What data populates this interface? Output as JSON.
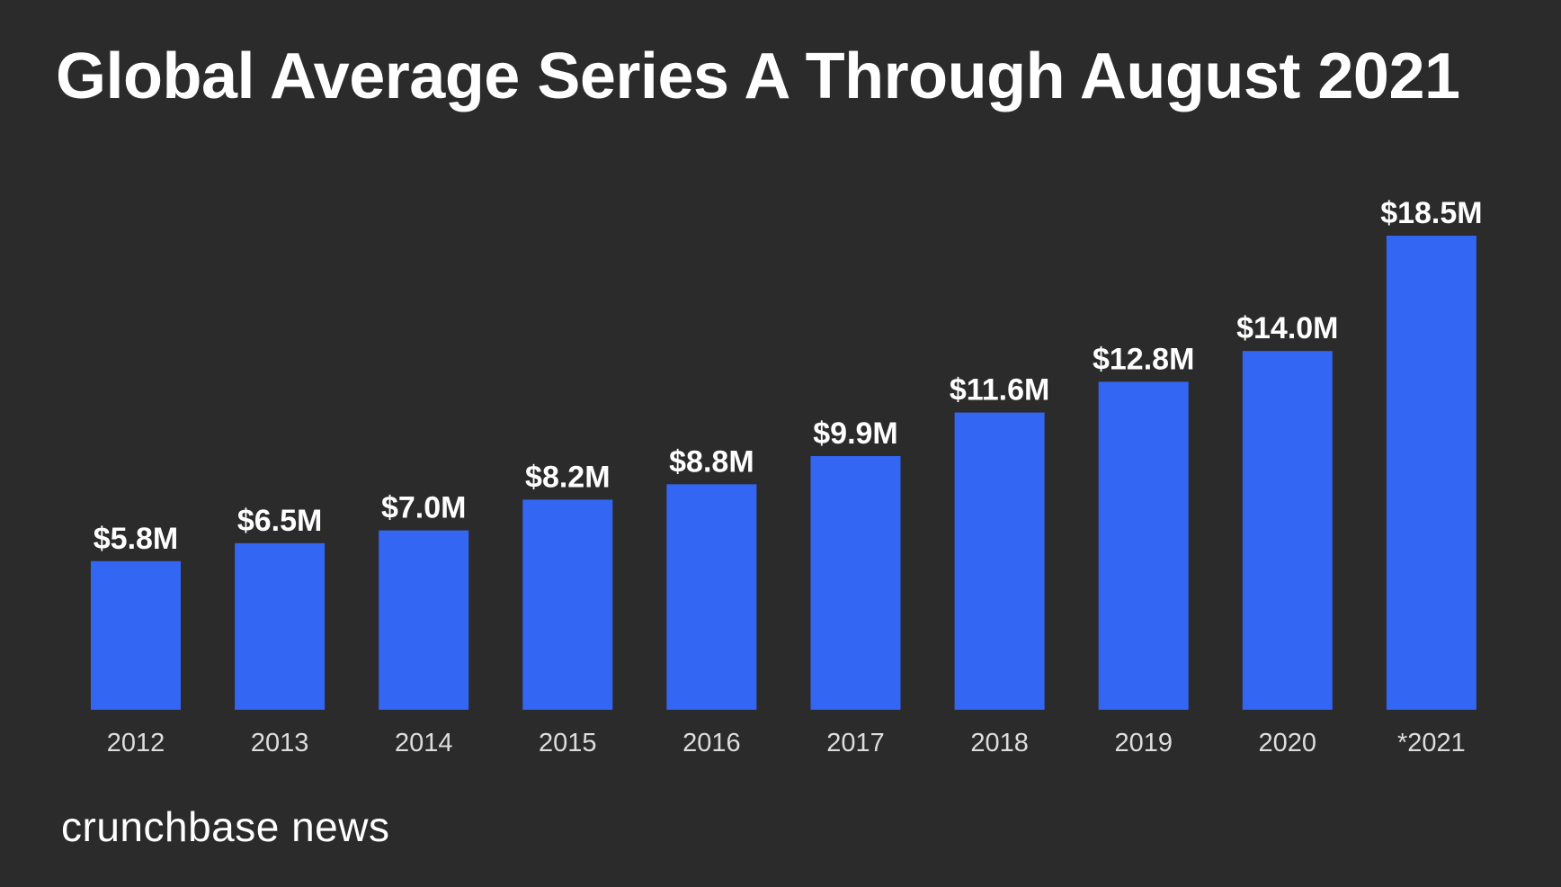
{
  "title": "Global Average Series A Through August 2021",
  "logo_text": "crunchbase news",
  "colors": {
    "background": "#2b2b2b",
    "bar": "#3366f2",
    "value_label": "#ffffff",
    "tick_label": "#dddddd"
  },
  "chart_data": {
    "type": "bar",
    "title": "Global Average Series A Through August 2021",
    "xlabel": "",
    "ylabel": "",
    "categories": [
      "2012",
      "2013",
      "2014",
      "2015",
      "2016",
      "2017",
      "2018",
      "2019",
      "2020",
      "*2021"
    ],
    "values": [
      5.8,
      6.5,
      7.0,
      8.2,
      8.8,
      9.9,
      11.6,
      12.8,
      14.0,
      18.5
    ],
    "value_labels": [
      "$5.8M",
      "$6.5M",
      "$7.0M",
      "$8.2M",
      "$8.8M",
      "$9.9M",
      "$11.6M",
      "$12.8M",
      "$14.0M",
      "$18.5M"
    ],
    "unit": "$M",
    "ylim": [
      0,
      18.5
    ],
    "grid": false,
    "legend": "none"
  }
}
